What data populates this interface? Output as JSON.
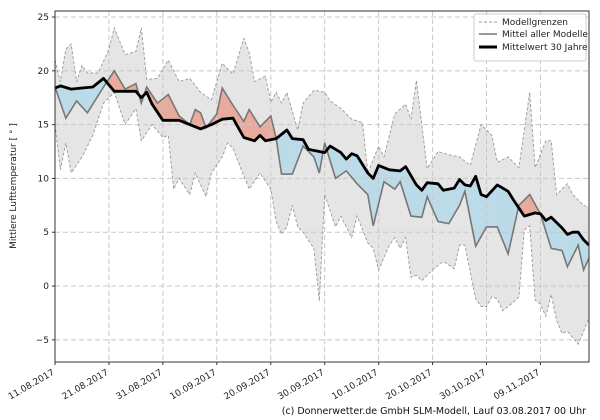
{
  "chart_data": {
    "type": "line",
    "title": "",
    "xlabel": "",
    "ylabel": "Mittlere Lufttemperatur [ ° ]",
    "xlim": [
      "11.08.2017",
      "18.11.2017"
    ],
    "ylim": [
      -7,
      25.5
    ],
    "yticks": [
      -5,
      0,
      5,
      10,
      15,
      20,
      25
    ],
    "xticks": [
      "11.08.2017",
      "21.08.2017",
      "31.08.2017",
      "10.09.2017",
      "20.09.2017",
      "30.09.2017",
      "10.10.2017",
      "20.10.2017",
      "30.10.2017",
      "09.11.2017"
    ],
    "grid": true,
    "legend_position": "top-right",
    "colors": {
      "band": "#e5e5e5",
      "band_edge": "#999999",
      "mean": "#777777",
      "climatology": "#000000",
      "warmer": "#e8ab9c",
      "colder": "#bcdbe8"
    },
    "series": [
      {
        "name": "Modellgrenzen",
        "role": "upper",
        "points": [
          [
            "11.08.2017",
            21
          ],
          [
            "12.08.2017",
            19
          ],
          [
            "13.08.2017",
            22
          ],
          [
            "14.08.2017",
            22.5
          ],
          [
            "15.08.2017",
            19
          ],
          [
            "16.08.2017",
            20.5
          ],
          [
            "17.08.2017",
            19.8
          ],
          [
            "19.08.2017",
            19.8
          ],
          [
            "21.08.2017",
            22
          ],
          [
            "22.08.2017",
            24
          ],
          [
            "24.08.2017",
            21.5
          ],
          [
            "26.08.2017",
            21.8
          ],
          [
            "27.08.2017",
            24
          ],
          [
            "28.08.2017",
            19.2
          ],
          [
            "30.08.2017",
            19.3
          ],
          [
            "01.09.2017",
            21
          ],
          [
            "03.09.2017",
            19
          ],
          [
            "05.09.2017",
            19.3
          ],
          [
            "07.09.2017",
            18
          ],
          [
            "09.09.2017",
            17.3
          ],
          [
            "11.09.2017",
            20.7
          ],
          [
            "13.09.2017",
            19.7
          ],
          [
            "15.09.2017",
            23
          ],
          [
            "16.09.2017",
            21.7
          ],
          [
            "17.09.2017",
            19
          ],
          [
            "19.09.2017",
            19.5
          ],
          [
            "20.09.2017",
            17.1
          ],
          [
            "21.09.2017",
            18
          ],
          [
            "22.09.2017",
            17
          ],
          [
            "23.09.2017",
            18
          ],
          [
            "25.09.2017",
            14.5
          ],
          [
            "26.09.2017",
            17
          ],
          [
            "28.09.2017",
            18.2
          ],
          [
            "30.09.2017",
            18
          ],
          [
            "01.10.2017",
            17.2
          ],
          [
            "03.10.2017",
            16.5
          ],
          [
            "05.10.2017",
            15.5
          ],
          [
            "07.10.2017",
            15.2
          ],
          [
            "08.10.2017",
            10.5
          ],
          [
            "10.10.2017",
            13
          ],
          [
            "11.10.2017",
            12
          ],
          [
            "13.10.2017",
            16
          ],
          [
            "15.10.2017",
            16.9
          ],
          [
            "16.10.2017",
            15.5
          ],
          [
            "17.10.2017",
            19.1
          ],
          [
            "19.10.2017",
            10.9
          ],
          [
            "21.10.2017",
            12.5
          ],
          [
            "23.10.2017",
            12.2
          ],
          [
            "25.10.2017",
            12
          ],
          [
            "27.10.2017",
            11.2
          ],
          [
            "29.10.2017",
            15
          ],
          [
            "31.10.2017",
            14
          ],
          [
            "01.11.2017",
            11.5
          ],
          [
            "03.11.2017",
            12
          ],
          [
            "05.11.2017",
            11
          ],
          [
            "07.11.2017",
            18
          ],
          [
            "08.11.2017",
            11
          ],
          [
            "10.11.2017",
            13.5
          ],
          [
            "11.11.2017",
            13.5
          ],
          [
            "12.11.2017",
            8.5
          ],
          [
            "14.11.2017",
            9.5
          ],
          [
            "15.11.2017",
            8.5
          ],
          [
            "17.11.2017",
            7.5
          ],
          [
            "18.11.2017",
            7.3
          ]
        ]
      },
      {
        "name": "Modellgrenzen",
        "role": "lower",
        "points": [
          [
            "11.08.2017",
            15
          ],
          [
            "12.08.2017",
            10.8
          ],
          [
            "13.08.2017",
            13.3
          ],
          [
            "14.08.2017",
            10.5
          ],
          [
            "16.08.2017",
            12
          ],
          [
            "18.08.2017",
            14
          ],
          [
            "20.08.2017",
            17
          ],
          [
            "22.08.2017",
            18
          ],
          [
            "24.08.2017",
            15
          ],
          [
            "26.08.2017",
            16.5
          ],
          [
            "27.08.2017",
            13.5
          ],
          [
            "29.08.2017",
            15
          ],
          [
            "31.08.2017",
            13.8
          ],
          [
            "01.09.2017",
            14
          ],
          [
            "02.09.2017",
            9
          ],
          [
            "03.09.2017",
            10
          ],
          [
            "05.09.2017",
            8.5
          ],
          [
            "06.09.2017",
            10.5
          ],
          [
            "08.09.2017",
            8.3
          ],
          [
            "09.09.2017",
            10.5
          ],
          [
            "11.09.2017",
            12
          ],
          [
            "12.09.2017",
            13.3
          ],
          [
            "13.09.2017",
            12.8
          ],
          [
            "14.09.2017",
            11.5
          ],
          [
            "16.09.2017",
            9
          ],
          [
            "18.09.2017",
            10.5
          ],
          [
            "20.09.2017",
            9
          ],
          [
            "21.09.2017",
            6
          ],
          [
            "22.09.2017",
            4.8
          ],
          [
            "23.09.2017",
            5.5
          ],
          [
            "24.09.2017",
            7.5
          ],
          [
            "25.09.2017",
            5.5
          ],
          [
            "26.09.2017",
            5
          ],
          [
            "28.09.2017",
            3.5
          ],
          [
            "29.09.2017",
            -1.4
          ],
          [
            "30.09.2017",
            8.5
          ],
          [
            "02.10.2017",
            5.5
          ],
          [
            "03.10.2017",
            6.5
          ],
          [
            "05.10.2017",
            4.5
          ],
          [
            "06.10.2017",
            6.5
          ],
          [
            "08.10.2017",
            4
          ],
          [
            "09.10.2017",
            3.5
          ],
          [
            "10.10.2017",
            1.5
          ],
          [
            "12.10.2017",
            3.8
          ],
          [
            "13.10.2017",
            4.5
          ],
          [
            "14.10.2017",
            3.5
          ],
          [
            "15.10.2017",
            4.5
          ],
          [
            "16.10.2017",
            0.8
          ],
          [
            "17.10.2017",
            1
          ],
          [
            "18.10.2017",
            0.5
          ],
          [
            "20.10.2017",
            1.5
          ],
          [
            "22.10.2017",
            2.3
          ],
          [
            "24.10.2017",
            1.6
          ],
          [
            "25.10.2017",
            3.8
          ],
          [
            "26.10.2017",
            3.8
          ],
          [
            "28.10.2017",
            -1.2
          ],
          [
            "29.10.2017",
            -1.9
          ],
          [
            "30.10.2017",
            -1.9
          ],
          [
            "31.10.2017",
            -1
          ],
          [
            "01.11.2017",
            -1.2
          ],
          [
            "02.11.2017",
            -2.3
          ],
          [
            "04.11.2017",
            -1.5
          ],
          [
            "05.11.2017",
            -1
          ],
          [
            "06.11.2017",
            5.2
          ],
          [
            "07.11.2017",
            5.6
          ],
          [
            "08.11.2017",
            -1.3
          ],
          [
            "09.11.2017",
            -1.7
          ],
          [
            "10.11.2017",
            -2.8
          ],
          [
            "11.11.2017",
            -0.8
          ],
          [
            "12.11.2017",
            -3.2
          ],
          [
            "13.11.2017",
            -4.4
          ],
          [
            "14.11.2017",
            -4.2
          ],
          [
            "15.11.2017",
            -4.8
          ],
          [
            "16.11.2017",
            -5.4
          ],
          [
            "18.11.2017",
            -3
          ]
        ]
      },
      {
        "name": "Mittel aller Modelle",
        "role": "mean",
        "points": [
          [
            "11.08.2017",
            18.5
          ],
          [
            "13.08.2017",
            15.6
          ],
          [
            "15.08.2017",
            17.2
          ],
          [
            "17.08.2017",
            16.1
          ],
          [
            "19.08.2017",
            17.7
          ],
          [
            "20.08.2017",
            18.5
          ],
          [
            "22.08.2017",
            20
          ],
          [
            "24.08.2017",
            18.3
          ],
          [
            "26.08.2017",
            18.8
          ],
          [
            "27.08.2017",
            17
          ],
          [
            "28.08.2017",
            18.5
          ],
          [
            "30.08.2017",
            17
          ],
          [
            "01.09.2017",
            17.8
          ],
          [
            "03.09.2017",
            15.8
          ],
          [
            "05.09.2017",
            15
          ],
          [
            "06.09.2017",
            16.4
          ],
          [
            "07.09.2017",
            16.1
          ],
          [
            "08.09.2017",
            14.7
          ],
          [
            "10.09.2017",
            16
          ],
          [
            "11.09.2017",
            18.4
          ],
          [
            "13.09.2017",
            16.8
          ],
          [
            "15.09.2017",
            15.3
          ],
          [
            "16.09.2017",
            16.4
          ],
          [
            "18.09.2017",
            14.8
          ],
          [
            "20.09.2017",
            15.8
          ],
          [
            "21.09.2017",
            13.7
          ],
          [
            "22.09.2017",
            10.4
          ],
          [
            "24.09.2017",
            10.4
          ],
          [
            "26.09.2017",
            13
          ],
          [
            "28.09.2017",
            12
          ],
          [
            "29.09.2017",
            10.5
          ],
          [
            "30.09.2017",
            13.3
          ],
          [
            "02.10.2017",
            10
          ],
          [
            "04.10.2017",
            10.7
          ],
          [
            "06.10.2017",
            9.5
          ],
          [
            "08.10.2017",
            8.5
          ],
          [
            "09.10.2017",
            5.6
          ],
          [
            "11.10.2017",
            9.7
          ],
          [
            "13.10.2017",
            9
          ],
          [
            "14.10.2017",
            9.7
          ],
          [
            "16.10.2017",
            6.5
          ],
          [
            "18.10.2017",
            6.4
          ],
          [
            "19.10.2017",
            8.3
          ],
          [
            "21.10.2017",
            6
          ],
          [
            "23.10.2017",
            5.8
          ],
          [
            "25.10.2017",
            7.5
          ],
          [
            "26.10.2017",
            8.8
          ],
          [
            "28.10.2017",
            3.7
          ],
          [
            "30.10.2017",
            5.5
          ],
          [
            "01.11.2017",
            5.5
          ],
          [
            "03.11.2017",
            3
          ],
          [
            "05.11.2017",
            7.5
          ],
          [
            "07.11.2017",
            8.5
          ],
          [
            "09.11.2017",
            6.7
          ],
          [
            "11.11.2017",
            3.5
          ],
          [
            "13.11.2017",
            3.3
          ],
          [
            "14.11.2017",
            1.8
          ],
          [
            "16.11.2017",
            3.8
          ],
          [
            "17.11.2017",
            1.5
          ],
          [
            "18.11.2017",
            2.6
          ]
        ]
      },
      {
        "name": "Mittelwert 30 Jahre",
        "role": "climatology",
        "points": [
          [
            "11.08.2017",
            18.4
          ],
          [
            "12.08.2017",
            18.6
          ],
          [
            "14.08.2017",
            18.3
          ],
          [
            "16.08.2017",
            18.4
          ],
          [
            "18.08.2017",
            18.5
          ],
          [
            "20.08.2017",
            19.3
          ],
          [
            "22.08.2017",
            18.1
          ],
          [
            "26.08.2017",
            18.1
          ],
          [
            "27.08.2017",
            17.5
          ],
          [
            "28.08.2017",
            18
          ],
          [
            "29.08.2017",
            16.9
          ],
          [
            "31.08.2017",
            15.4
          ],
          [
            "03.09.2017",
            15.4
          ],
          [
            "05.09.2017",
            15
          ],
          [
            "07.09.2017",
            14.6
          ],
          [
            "09.09.2017",
            15
          ],
          [
            "11.09.2017",
            15.5
          ],
          [
            "13.09.2017",
            15.6
          ],
          [
            "15.09.2017",
            13.8
          ],
          [
            "17.09.2017",
            13.5
          ],
          [
            "18.09.2017",
            14
          ],
          [
            "19.09.2017",
            13.5
          ],
          [
            "21.09.2017",
            13.7
          ],
          [
            "23.09.2017",
            14.5
          ],
          [
            "24.09.2017",
            13.7
          ],
          [
            "26.09.2017",
            13.6
          ],
          [
            "27.09.2017",
            12.7
          ],
          [
            "29.09.2017",
            12.5
          ],
          [
            "30.09.2017",
            12.4
          ],
          [
            "01.10.2017",
            13
          ],
          [
            "03.10.2017",
            12.4
          ],
          [
            "04.10.2017",
            11.8
          ],
          [
            "05.10.2017",
            12.3
          ],
          [
            "06.10.2017",
            12.1
          ],
          [
            "08.10.2017",
            10.5
          ],
          [
            "09.10.2017",
            10
          ],
          [
            "10.10.2017",
            11.2
          ],
          [
            "12.10.2017",
            10.8
          ],
          [
            "14.10.2017",
            10.7
          ],
          [
            "15.10.2017",
            11.1
          ],
          [
            "17.10.2017",
            9.4
          ],
          [
            "18.10.2017",
            8.9
          ],
          [
            "19.10.2017",
            9.6
          ],
          [
            "21.10.2017",
            9.5
          ],
          [
            "22.10.2017",
            8.9
          ],
          [
            "24.10.2017",
            9.1
          ],
          [
            "25.10.2017",
            9.9
          ],
          [
            "26.10.2017",
            9.4
          ],
          [
            "27.10.2017",
            9.3
          ],
          [
            "28.10.2017",
            10.2
          ],
          [
            "29.10.2017",
            8.5
          ],
          [
            "30.10.2017",
            8.3
          ],
          [
            "01.11.2017",
            9.4
          ],
          [
            "03.11.2017",
            8.8
          ],
          [
            "04.11.2017",
            8
          ],
          [
            "06.11.2017",
            6.5
          ],
          [
            "08.11.2017",
            6.8
          ],
          [
            "09.11.2017",
            6.7
          ],
          [
            "10.11.2017",
            6.1
          ],
          [
            "11.11.2017",
            6.4
          ],
          [
            "13.11.2017",
            5.4
          ],
          [
            "14.11.2017",
            4.8
          ],
          [
            "15.11.2017",
            5
          ],
          [
            "16.11.2017",
            5
          ],
          [
            "17.11.2017",
            4.3
          ],
          [
            "18.11.2017",
            3.8
          ]
        ]
      }
    ],
    "legend": [
      "Modellgrenzen",
      "Mittel aller Modelle",
      "Mittelwert 30 Jahre"
    ]
  },
  "footer": "(c) Donnerwetter.de GmbH SLM-Modell, Lauf 03.08.2017 00 Uhr"
}
